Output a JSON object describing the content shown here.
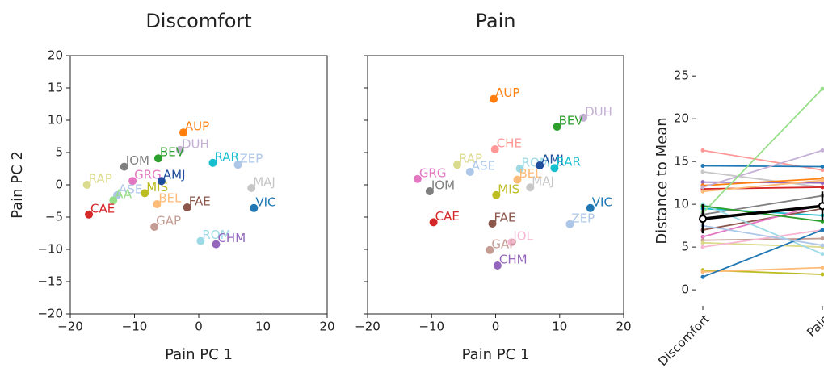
{
  "chart_data": [
    {
      "type": "scatter",
      "title": "Discomfort",
      "xlabel": "Pain PC 1",
      "ylabel": "Pain PC 2",
      "xlim": [
        -20,
        20
      ],
      "ylim": [
        -20,
        20
      ],
      "xticks": [
        {
          "value": -20,
          "label": "−20"
        },
        {
          "value": -10,
          "label": "−10"
        },
        0,
        10,
        20
      ],
      "yticks": [
        {
          "value": -20,
          "label": "−20"
        },
        {
          "value": -15,
          "label": "−15"
        },
        {
          "value": -10,
          "label": "−10"
        },
        {
          "value": -5,
          "label": "−5"
        },
        0,
        5,
        10,
        15,
        20
      ],
      "ytick_labels": true,
      "labels": [
        "AUP",
        "DUH",
        "BEV",
        "IOM",
        "RAR",
        "ZEP",
        "MAJ",
        "VIC",
        "RAP",
        "GRG",
        "ASE",
        "AA",
        "MIS",
        "AMJ",
        "BEL",
        "FAE",
        "CAE",
        "GAP",
        "ROM",
        "CHM"
      ],
      "x": [
        -2.4,
        -2.9,
        -6.3,
        -11.6,
        2.2,
        6.1,
        8.2,
        8.6,
        -17.4,
        -10.3,
        -12.7,
        -13.3,
        -8.4,
        -5.8,
        -6.5,
        -1.8,
        -17.1,
        -6.9,
        0.3,
        2.7
      ],
      "y": [
        8.1,
        5.4,
        4.1,
        2.8,
        3.4,
        3.1,
        -0.5,
        -3.6,
        0.0,
        0.6,
        -1.6,
        -2.4,
        -1.3,
        0.6,
        -3.0,
        -3.5,
        -4.6,
        -6.5,
        -8.7,
        -9.2
      ],
      "colors": [
        "#ff7f0e",
        "#c5b0d5",
        "#2ca02c",
        "#7f7f7f",
        "#17becf",
        "#aec7e8",
        "#c7c7c7",
        "#1f77b4",
        "#dbdb8d",
        "#e377c2",
        "#aec7e8",
        "#98df8a",
        "#bcbd22",
        "#1f4e9c",
        "#ffbb78",
        "#8c564b",
        "#d62728",
        "#c49c94",
        "#9edae5",
        "#9467bd"
      ]
    },
    {
      "type": "scatter",
      "title": "Pain",
      "xlabel": "Pain PC 1",
      "xlim": [
        -20,
        20
      ],
      "ylim": [
        -20,
        20
      ],
      "xticks": [
        {
          "value": -20,
          "label": "−20"
        },
        {
          "value": -10,
          "label": "−10"
        },
        0,
        10,
        20
      ],
      "yticks": [
        -20,
        -15,
        -10,
        -5,
        0,
        5,
        10,
        15,
        20
      ],
      "ytick_labels": false,
      "labels": [
        "AUP",
        "DUH",
        "BEV",
        "CHE",
        "RAP",
        "ASE",
        "GRG",
        "IOM",
        "ROM",
        "AMJ",
        "RAR",
        "BEL",
        "MAJ",
        "MIS",
        "VIC",
        "ZEP",
        "CAE",
        "FAE",
        "JOL",
        "GAP",
        "CHM"
      ],
      "x": [
        -0.3,
        13.7,
        9.6,
        -0.1,
        -6.0,
        -4.0,
        -12.2,
        -10.3,
        3.8,
        6.9,
        9.2,
        3.4,
        5.4,
        0.1,
        14.8,
        11.6,
        -9.7,
        -0.5,
        2.5,
        -0.9,
        0.3
      ],
      "y": [
        13.3,
        10.4,
        9.0,
        5.5,
        3.1,
        2.0,
        0.9,
        -1.0,
        2.5,
        3.0,
        2.6,
        0.8,
        -0.4,
        -1.6,
        -3.6,
        -6.1,
        -5.8,
        -6.0,
        -8.9,
        -10.1,
        -12.5
      ],
      "colors": [
        "#ff7f0e",
        "#c5b0d5",
        "#2ca02c",
        "#ff9896",
        "#dbdb8d",
        "#aec7e8",
        "#e377c2",
        "#7f7f7f",
        "#9edae5",
        "#1f4e9c",
        "#17becf",
        "#ffbb78",
        "#c7c7c7",
        "#bcbd22",
        "#1f77b4",
        "#aec7e8",
        "#d62728",
        "#8c564b",
        "#f7b6d2",
        "#c49c94",
        "#9467bd"
      ]
    },
    {
      "type": "line",
      "ylabel": "Distance to Mean",
      "categories": [
        "Discomfort",
        "Pain"
      ],
      "ylim": [
        -1.5,
        27
      ],
      "yticks": [
        0,
        5,
        10,
        15,
        20,
        25
      ],
      "series": [
        {
          "color": "#ff9896",
          "values": [
            16.3,
            14.0
          ]
        },
        {
          "color": "#1f77b4",
          "values": [
            14.5,
            14.4
          ]
        },
        {
          "color": "#c7c7c7",
          "values": [
            13.8,
            12.0
          ]
        },
        {
          "color": "#9467bd",
          "values": [
            12.6,
            12.5
          ]
        },
        {
          "color": "#ff7f0e",
          "values": [
            12.2,
            13.0
          ]
        },
        {
          "color": "#d62728",
          "values": [
            11.8,
            12.0
          ]
        },
        {
          "color": "#c5b0d5",
          "values": [
            12.0,
            16.3
          ]
        },
        {
          "color": "#ffbb78",
          "values": [
            11.5,
            12.8
          ]
        },
        {
          "color": "#17becf",
          "values": [
            9.5,
            8.7
          ]
        },
        {
          "color": "#98df8a",
          "values": [
            9.0,
            23.5
          ]
        },
        {
          "color": "#7f7f7f",
          "values": [
            8.8,
            11.0
          ]
        },
        {
          "color": "#8c564b",
          "values": [
            7.0,
            9.5
          ]
        },
        {
          "color": "#e377c2",
          "values": [
            6.2,
            10.0
          ]
        },
        {
          "color": "#c49c94",
          "values": [
            5.8,
            6.0
          ]
        },
        {
          "color": "#dbdb8d",
          "values": [
            5.5,
            5.0
          ]
        },
        {
          "color": "#9edae5",
          "values": [
            10.0,
            4.2
          ]
        },
        {
          "color": "#f7b6d2",
          "values": [
            5.0,
            7.0
          ]
        },
        {
          "color": "#2ca02c",
          "values": [
            9.8,
            8.0
          ]
        },
        {
          "color": "#bcbd22",
          "values": [
            2.3,
            1.8
          ]
        },
        {
          "color": "#ffbb78",
          "values": [
            2.1,
            2.6
          ]
        },
        {
          "color": "#1f77b4",
          "values": [
            1.5,
            7.0
          ]
        },
        {
          "color": "#aec7e8",
          "values": [
            7.5,
            5.2
          ]
        }
      ],
      "mean": {
        "color": "#000000",
        "values": [
          8.3,
          9.8
        ],
        "errors": [
          1.7,
          1.7
        ]
      }
    }
  ]
}
